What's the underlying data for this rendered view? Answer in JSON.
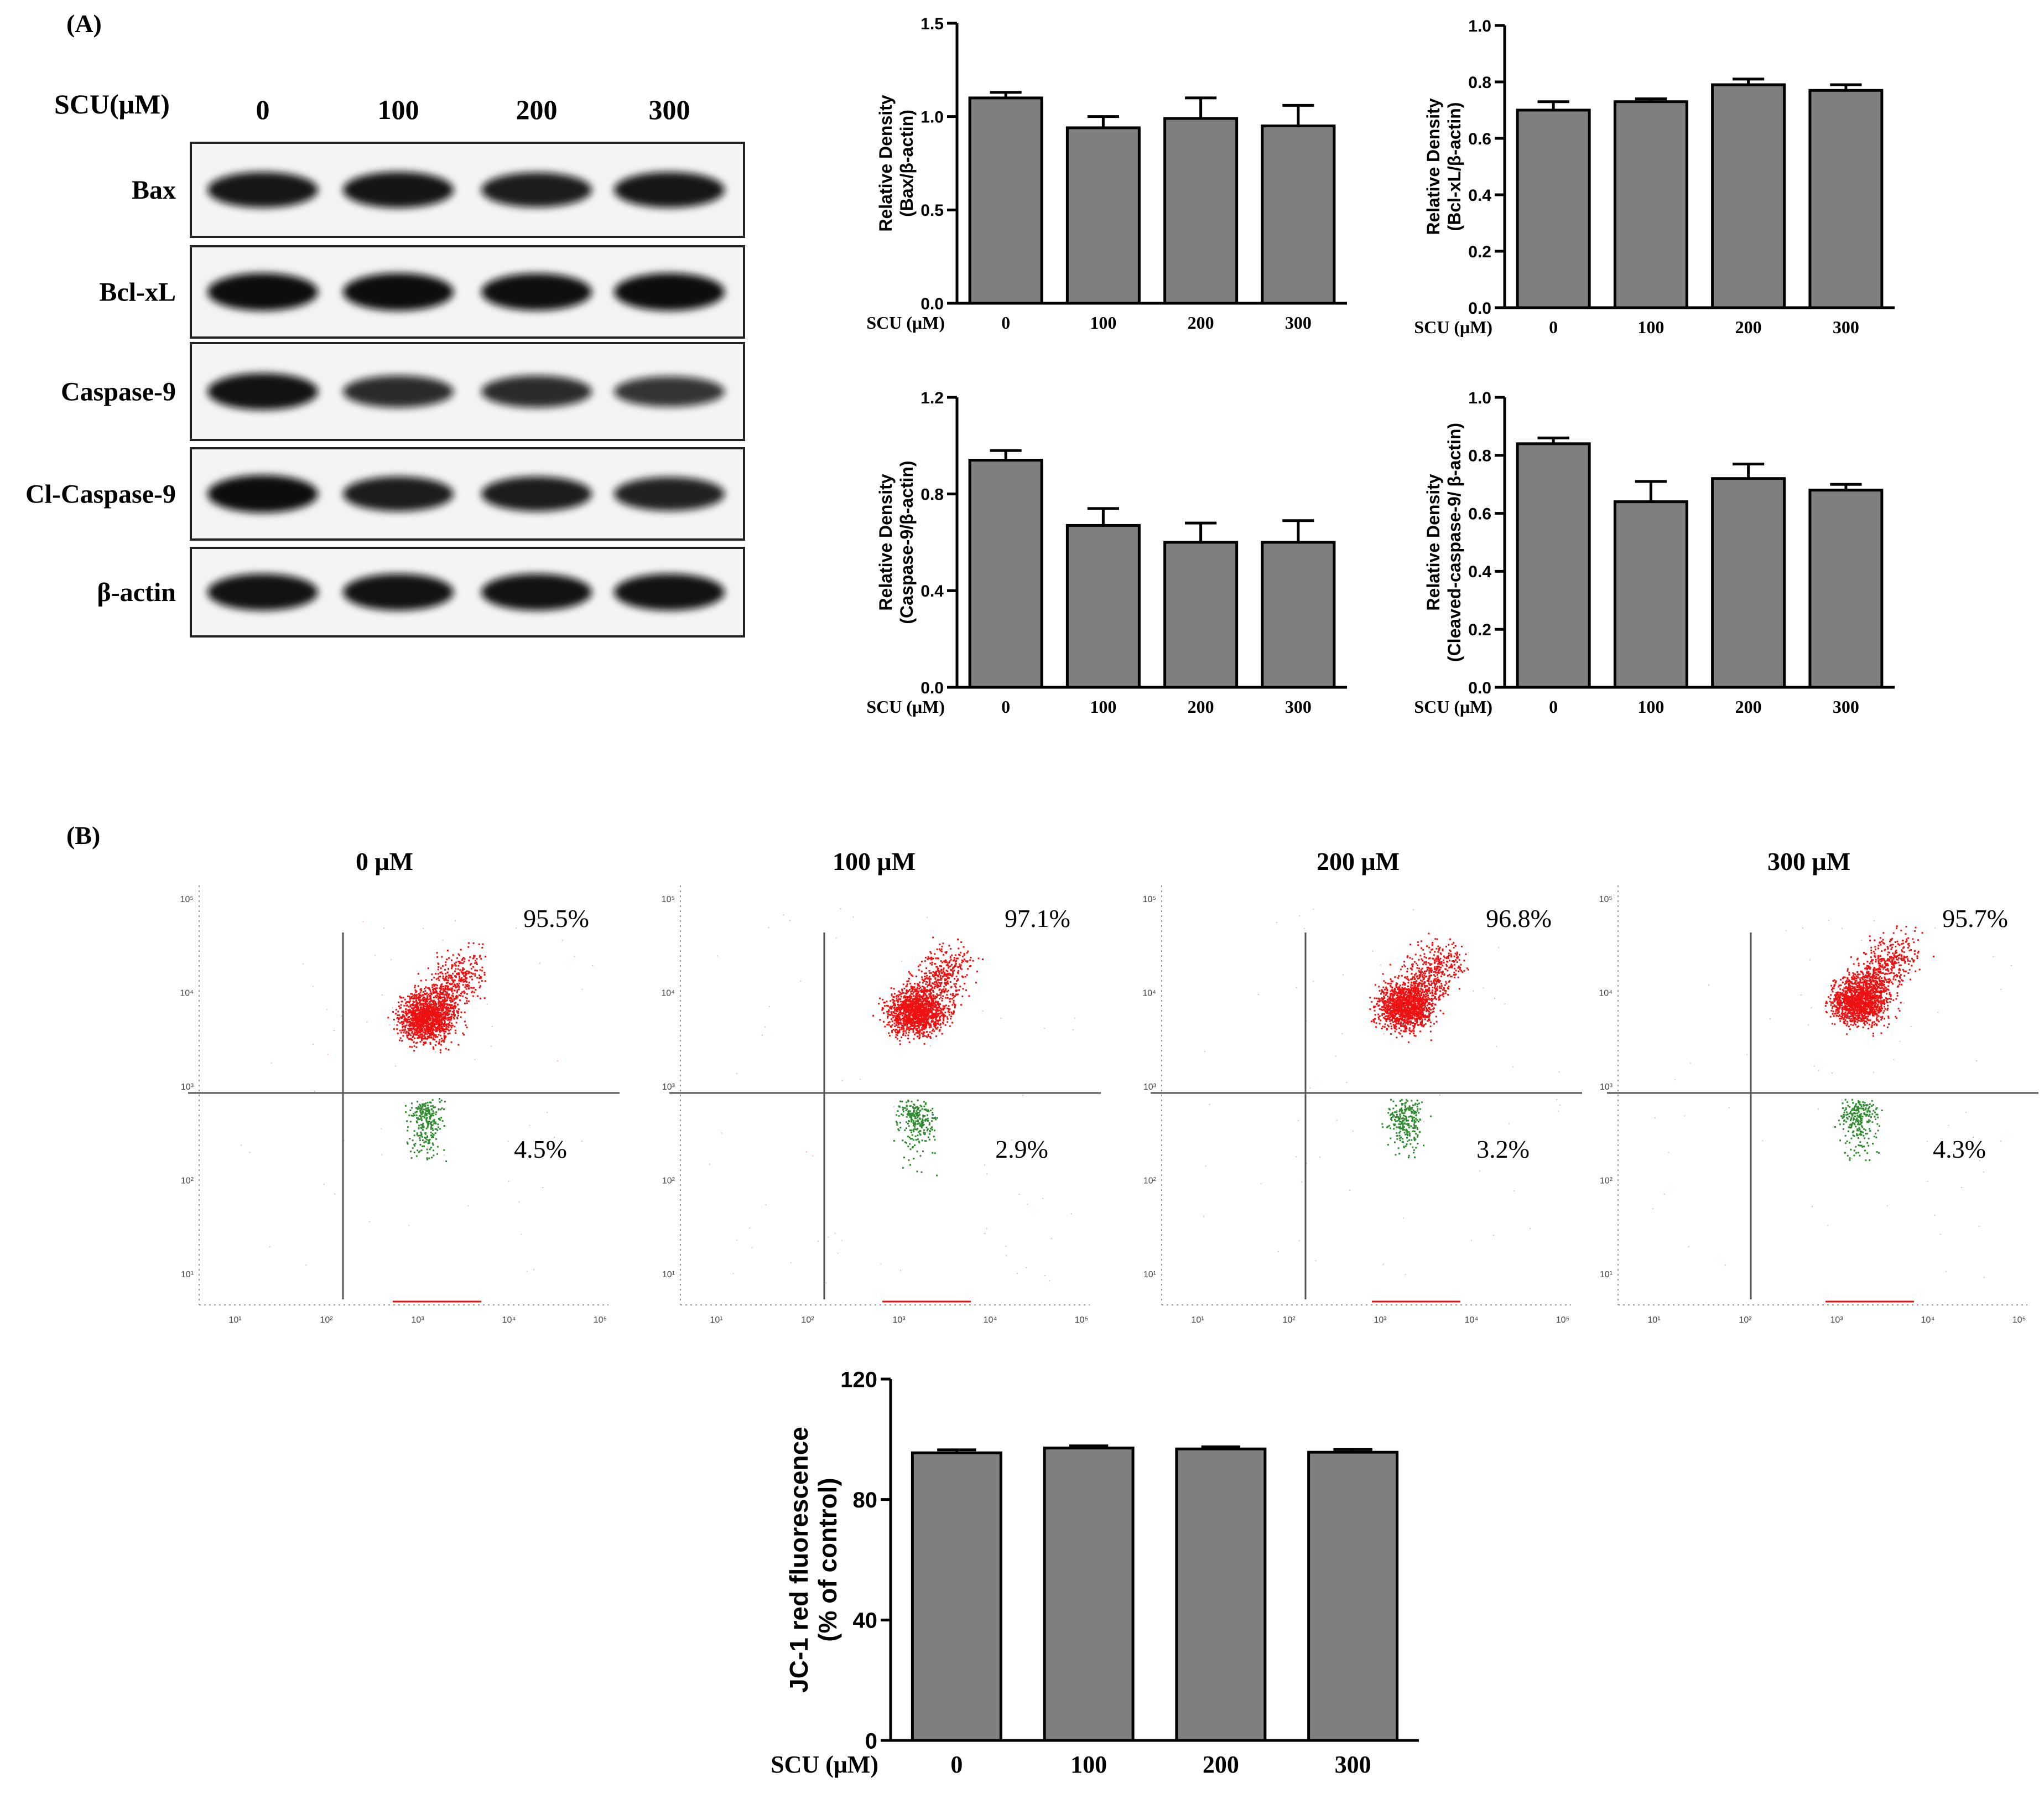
{
  "panel_a_label": "(A)",
  "panel_b_label": "(B)",
  "blot": {
    "treatment_label": "SCU(μM)",
    "lanes": [
      "0",
      "100",
      "200",
      "300"
    ],
    "rows": [
      {
        "label": "Bax",
        "intensity": [
          0.9,
          0.92,
          0.85,
          0.9
        ]
      },
      {
        "label": "Bcl-xL",
        "intensity": [
          1.0,
          1.0,
          0.97,
          1.0
        ]
      },
      {
        "label": "Caspase-9",
        "intensity": [
          0.95,
          0.7,
          0.7,
          0.62
        ]
      },
      {
        "label": "Cl-Caspase-9",
        "intensity": [
          1.0,
          0.85,
          0.85,
          0.8
        ]
      },
      {
        "label": "β-actin",
        "intensity": [
          0.95,
          0.95,
          0.95,
          0.95
        ]
      }
    ]
  },
  "flow": {
    "panels": [
      {
        "title": "0 μM",
        "upper": "95.5%",
        "lower": "4.5%"
      },
      {
        "title": "100 μM",
        "upper": "97.1%",
        "lower": "2.9%"
      },
      {
        "title": "200 μM",
        "upper": "96.8%",
        "lower": "3.2%"
      },
      {
        "title": "300 μM",
        "upper": "95.7%",
        "lower": "4.3%"
      }
    ],
    "y_ticks": [
      "10⁵",
      "10⁴",
      "10³",
      "10²",
      "10¹"
    ],
    "x_ticks": [
      "10¹",
      "10²",
      "10³",
      "10⁴",
      "10⁵"
    ],
    "colors": {
      "upper": "#ee1111",
      "lower": "#2e8b2e"
    }
  },
  "chart_data": [
    {
      "type": "bar",
      "categories": [
        "0",
        "100",
        "200",
        "300"
      ],
      "values": [
        1.1,
        0.94,
        0.99,
        0.95
      ],
      "errors": [
        0.03,
        0.06,
        0.11,
        0.11
      ],
      "ylabel": [
        "Relative Density",
        "(Bax/β-actin)"
      ],
      "xlabel": "SCU (μM)",
      "ylim": [
        0,
        1.5
      ],
      "yticks": [
        "0.0",
        "0.5",
        "1.0",
        "1.5"
      ]
    },
    {
      "type": "bar",
      "categories": [
        "0",
        "100",
        "200",
        "300"
      ],
      "values": [
        0.7,
        0.73,
        0.79,
        0.77
      ],
      "errors": [
        0.03,
        0.01,
        0.02,
        0.02
      ],
      "ylabel": [
        "Relative Density",
        "(Bcl-xL/β-actin)"
      ],
      "xlabel": "SCU (μM)",
      "ylim": [
        0,
        1.0
      ],
      "yticks": [
        "0.0",
        "0.2",
        "0.4",
        "0.6",
        "0.8",
        "1.0"
      ]
    },
    {
      "type": "bar",
      "categories": [
        "0",
        "100",
        "200",
        "300"
      ],
      "values": [
        0.94,
        0.67,
        0.6,
        0.6
      ],
      "errors": [
        0.04,
        0.07,
        0.08,
        0.09
      ],
      "ylabel": [
        "Relative Density",
        "(Caspase-9/β-actin)"
      ],
      "xlabel": "SCU (μM)",
      "ylim": [
        0,
        1.2
      ],
      "yticks": [
        "0.0",
        "0.4",
        "0.8",
        "1.2"
      ]
    },
    {
      "type": "bar",
      "categories": [
        "0",
        "100",
        "200",
        "300"
      ],
      "values": [
        0.84,
        0.64,
        0.72,
        0.68
      ],
      "errors": [
        0.02,
        0.07,
        0.05,
        0.02
      ],
      "ylabel": [
        "Relative Density",
        "(Cleaved-caspase-9/ β-actin)"
      ],
      "xlabel": "SCU (μM)",
      "ylim": [
        0,
        1.0
      ],
      "yticks": [
        "0.0",
        "0.2",
        "0.4",
        "0.6",
        "0.8",
        "1.0"
      ]
    },
    {
      "type": "bar",
      "categories": [
        "0",
        "100",
        "200",
        "300"
      ],
      "values": [
        95.5,
        97.1,
        96.8,
        95.7
      ],
      "errors": [
        1.0,
        0.7,
        0.7,
        0.9
      ],
      "ylabel": [
        "JC-1 red fluorescence",
        "(% of control)"
      ],
      "xlabel": "SCU (μM)",
      "ylim": [
        0,
        120
      ],
      "yticks": [
        "0",
        "40",
        "80",
        "120"
      ]
    }
  ]
}
